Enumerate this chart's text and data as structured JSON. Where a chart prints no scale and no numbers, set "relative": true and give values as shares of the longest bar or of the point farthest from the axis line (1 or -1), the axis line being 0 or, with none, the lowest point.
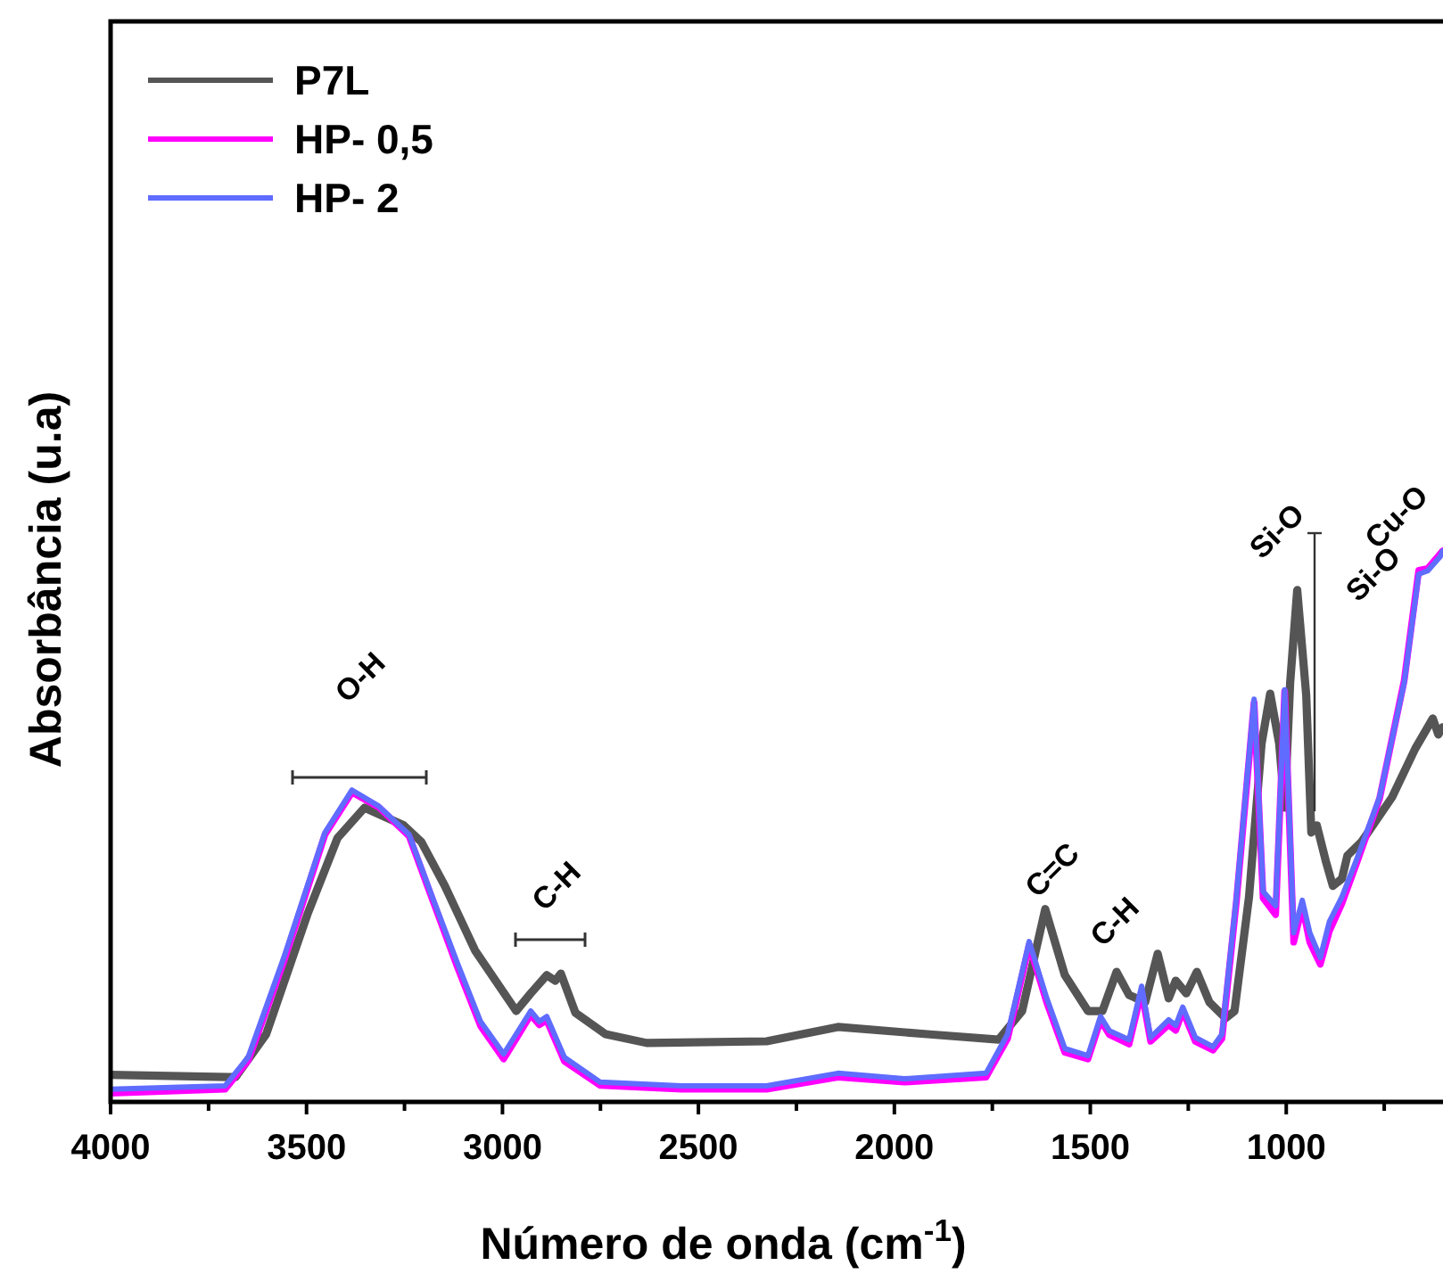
{
  "chart_data": {
    "type": "line",
    "relative": true,
    "xlabel": "Número de onda (cm$^{-1}$)",
    "ylabel": "Absorbância (u.a)",
    "xlim": [
      4000,
      600
    ],
    "xticks": [
      4000,
      {
        "value": 3750,
        "label": null
      },
      3500,
      {
        "value": 3250,
        "label": null
      },
      3000,
      {
        "value": 2750,
        "label": null
      },
      2500,
      {
        "value": 2250,
        "label": null
      },
      2000,
      {
        "value": 1750,
        "label": null
      },
      1500,
      {
        "value": 1250,
        "label": null
      },
      1000,
      {
        "value": 750,
        "label": null
      }
    ],
    "legend": "top left",
    "grid": false,
    "marker": "none",
    "line_style": "solid",
    "series": [
      {
        "name": "P7L",
        "color": "#555555",
        "x": [
          4000,
          3681,
          3603,
          3498,
          3421,
          3352,
          3252,
          3207,
          3147,
          3070,
          2965,
          2928,
          2887,
          2865,
          2851,
          2814,
          2737,
          2632,
          2326,
          2144,
          1916,
          1734,
          1674,
          1615,
          1565,
          1506,
          1469,
          1433,
          1401,
          1360,
          1328,
          1300,
          1282,
          1255,
          1228,
          1196,
          1155,
          1132,
          1095,
          1063,
          1041,
          1018,
          1004,
          990,
          972,
          949,
          936,
          922,
          899,
          881,
          858,
          844,
          808,
          730,
          671,
          626,
          612,
          601
        ],
        "values": [
          0.049,
          0.045,
          0.123,
          0.34,
          0.479,
          0.534,
          0.502,
          0.472,
          0.392,
          0.275,
          0.165,
          0.197,
          0.23,
          0.22,
          0.233,
          0.162,
          0.123,
          0.107,
          0.11,
          0.136,
          0.123,
          0.113,
          0.165,
          0.35,
          0.23,
          0.165,
          0.165,
          0.236,
          0.194,
          0.181,
          0.269,
          0.188,
          0.22,
          0.197,
          0.236,
          0.181,
          0.152,
          0.165,
          0.372,
          0.65,
          0.741,
          0.65,
          0.534,
          0.761,
          0.929,
          0.738,
          0.489,
          0.502,
          0.437,
          0.392,
          0.405,
          0.447,
          0.472,
          0.553,
          0.641,
          0.696,
          0.667,
          0.68
        ]
      },
      {
        "name": "HP- 0,5",
        "color": "#ff00ff",
        "x": [
          4000,
          3708,
          3649,
          3558,
          3453,
          3384,
          3316,
          3238,
          3179,
          3115,
          3056,
          2997,
          2965,
          2928,
          2906,
          2887,
          2842,
          2751,
          2541,
          2326,
          2144,
          1975,
          1766,
          1711,
          1656,
          1611,
          1565,
          1506,
          1474,
          1451,
          1401,
          1369,
          1346,
          1300,
          1282,
          1264,
          1232,
          1187,
          1164,
          1127,
          1082,
          1059,
          1027,
          1004,
          981,
          959,
          940,
          913,
          890,
          858,
          822,
          762,
          699,
          662,
          639,
          607,
          601
        ],
        "values": [
          0.016,
          0.023,
          0.075,
          0.255,
          0.485,
          0.562,
          0.535,
          0.482,
          0.368,
          0.245,
          0.138,
          0.078,
          0.115,
          0.158,
          0.14,
          0.148,
          0.074,
          0.03,
          0.023,
          0.023,
          0.045,
          0.036,
          0.045,
          0.115,
          0.285,
          0.18,
          0.09,
          0.078,
          0.148,
          0.122,
          0.105,
          0.2,
          0.11,
          0.14,
          0.13,
          0.165,
          0.11,
          0.094,
          0.115,
          0.365,
          0.725,
          0.37,
          0.34,
          0.745,
          0.29,
          0.355,
          0.29,
          0.25,
          0.31,
          0.36,
          0.43,
          0.55,
          0.765,
          0.965,
          0.968,
          0.995,
          1.0
        ]
      },
      {
        "name": "HP- 2",
        "color": "#5f6cff",
        "x": [
          4000,
          3708,
          3649,
          3558,
          3453,
          3384,
          3316,
          3238,
          3179,
          3115,
          3056,
          2997,
          2965,
          2928,
          2906,
          2887,
          2842,
          2751,
          2541,
          2326,
          2144,
          1975,
          1766,
          1711,
          1656,
          1611,
          1565,
          1506,
          1474,
          1451,
          1401,
          1369,
          1346,
          1300,
          1282,
          1264,
          1232,
          1187,
          1164,
          1127,
          1082,
          1059,
          1027,
          1004,
          981,
          959,
          940,
          913,
          890,
          858,
          822,
          762,
          699,
          662,
          639,
          607,
          601
        ],
        "values": [
          0.023,
          0.029,
          0.081,
          0.262,
          0.489,
          0.566,
          0.537,
          0.485,
          0.372,
          0.252,
          0.146,
          0.087,
          0.123,
          0.165,
          0.146,
          0.155,
          0.081,
          0.036,
          0.029,
          0.029,
          0.052,
          0.042,
          0.052,
          0.123,
          0.291,
          0.188,
          0.097,
          0.084,
          0.155,
          0.129,
          0.113,
          0.21,
          0.117,
          0.149,
          0.139,
          0.172,
          0.117,
          0.1,
          0.123,
          0.372,
          0.731,
          0.382,
          0.356,
          0.748,
          0.307,
          0.366,
          0.307,
          0.262,
          0.327,
          0.372,
          0.437,
          0.553,
          0.761,
          0.958,
          0.964,
          0.99,
          1.0
        ]
      }
    ],
    "annotations": [
      "O-H",
      "C-H",
      "C=C",
      "C-H",
      "Si-O",
      "Cu-O",
      "Si-O"
    ]
  }
}
